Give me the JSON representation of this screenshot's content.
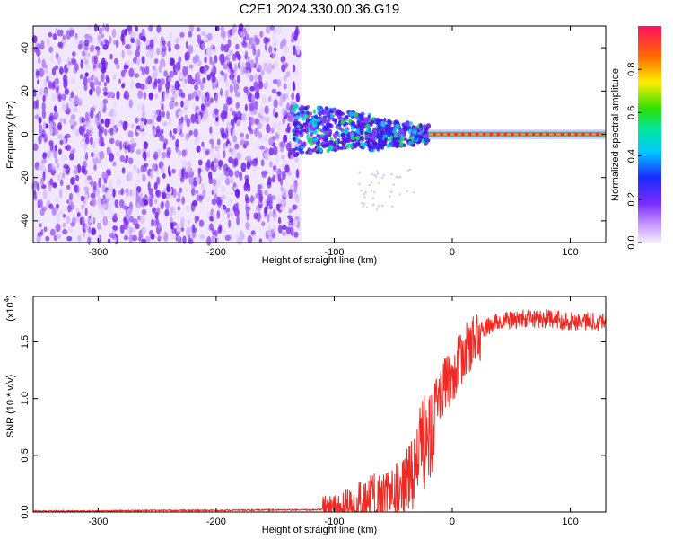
{
  "page_title": "C2E1.2024.330.00.36.G19",
  "colors": {
    "snr_line": "#ee2a24",
    "frame": "#000000",
    "background": "#ffffff"
  },
  "chart_data": [
    {
      "type": "heatmap",
      "title": "C2E1.2024.330.00.36.G19",
      "xlabel": "Height of straight line (km)",
      "ylabel": "Frequency (Hz)",
      "xlim": [
        -355,
        130
      ],
      "ylim": [
        -50,
        50
      ],
      "x_ticks": [
        -300,
        -200,
        -100,
        0,
        100
      ],
      "y_ticks": [
        40,
        20,
        0,
        -20,
        -40
      ],
      "colorbar": {
        "label": "Normalized spectral amplitude",
        "range": [
          0,
          1
        ],
        "ticks": [
          "0.0",
          "0.2",
          "0.4",
          "0.6",
          "0.8"
        ],
        "colormap": "spectral (magenta-blue-cyan-green-yellow-red)"
      },
      "regions": [
        {
          "from_km": -355,
          "to_km": -128,
          "frequency_spread_hz": [
            -50,
            50
          ],
          "amplitude": "low (0.0-0.2), scattered noise"
        },
        {
          "from_km": -135,
          "to_km": -20,
          "frequency_spread_hz": [
            -12,
            12
          ],
          "amplitude": "0.2-0.5, broad signal"
        },
        {
          "from_km": -20,
          "to_km": 130,
          "frequency_spread_hz": [
            -2,
            2
          ],
          "amplitude": "up to 1.0, centred near 0 Hz"
        }
      ]
    },
    {
      "type": "line",
      "xlabel": "Height of straight line (km)",
      "ylabel": "SNR (10 * v/v)",
      "scale_note": "(x10",
      "scale_exponent": "4",
      "xlim": [
        -355,
        130
      ],
      "ylim": [
        0,
        1.9
      ],
      "x_ticks": [
        -300,
        -200,
        -100,
        0,
        100
      ],
      "y_ticks": [
        "0.0",
        "0.5",
        "1.0",
        "1.5"
      ],
      "series": [
        {
          "x": [
            -355,
            -300,
            -250,
            -200,
            -150,
            -120,
            -100,
            -90,
            -80,
            -70,
            -60,
            -50,
            -45,
            -40,
            -35,
            -30,
            -25,
            -20,
            -15,
            -10,
            -5,
            0,
            5,
            10,
            20,
            30,
            40,
            60,
            80,
            100,
            130
          ],
          "y": [
            0.01,
            0.01,
            0.015,
            0.015,
            0.02,
            0.02,
            0.03,
            0.06,
            0.1,
            0.14,
            0.17,
            0.2,
            0.25,
            0.3,
            0.4,
            0.5,
            0.7,
            0.9,
            1.0,
            1.1,
            1.18,
            1.25,
            1.35,
            1.45,
            1.58,
            1.65,
            1.7,
            1.72,
            1.72,
            1.7,
            1.7
          ]
        }
      ]
    }
  ]
}
